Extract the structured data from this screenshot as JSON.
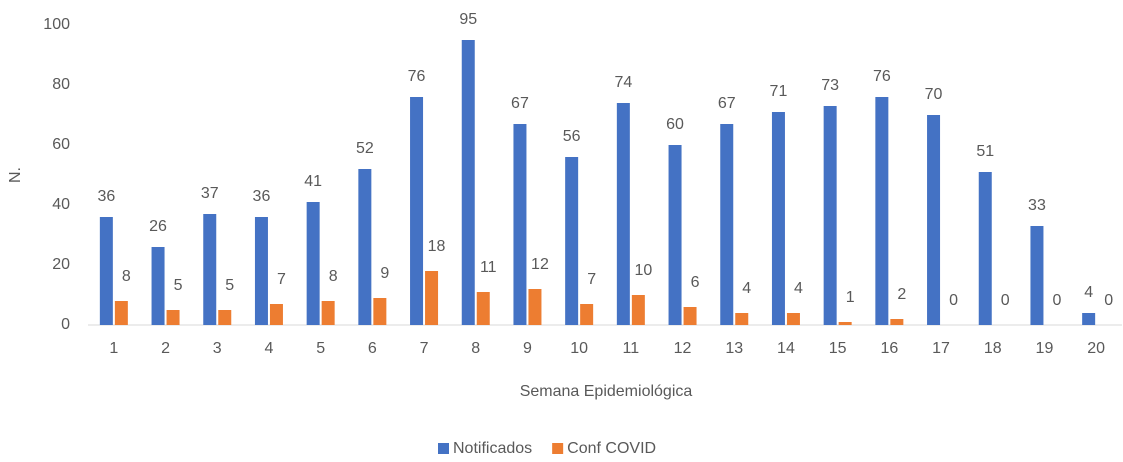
{
  "chart_data": {
    "type": "bar",
    "x_label": "Semana Epidemiológica",
    "y_label": "N.",
    "categories": [
      "1",
      "2",
      "3",
      "4",
      "5",
      "6",
      "7",
      "8",
      "9",
      "10",
      "11",
      "12",
      "13",
      "14",
      "15",
      "16",
      "17",
      "18",
      "19",
      "20"
    ],
    "series": [
      {
        "name": "Notificados",
        "color": "#4472c4",
        "values": [
          36,
          26,
          37,
          36,
          41,
          52,
          76,
          95,
          67,
          56,
          74,
          60,
          67,
          71,
          73,
          76,
          70,
          51,
          33,
          4
        ]
      },
      {
        "name": "Conf COVID",
        "color": "#ed7d31",
        "values": [
          8,
          5,
          5,
          7,
          8,
          9,
          18,
          11,
          12,
          7,
          10,
          6,
          4,
          4,
          1,
          2,
          0,
          0,
          0,
          0
        ]
      }
    ],
    "ylim": [
      0,
      100
    ],
    "yticks": [
      0,
      20,
      40,
      60,
      80,
      100
    ],
    "grid": false,
    "legend": "bottom"
  }
}
